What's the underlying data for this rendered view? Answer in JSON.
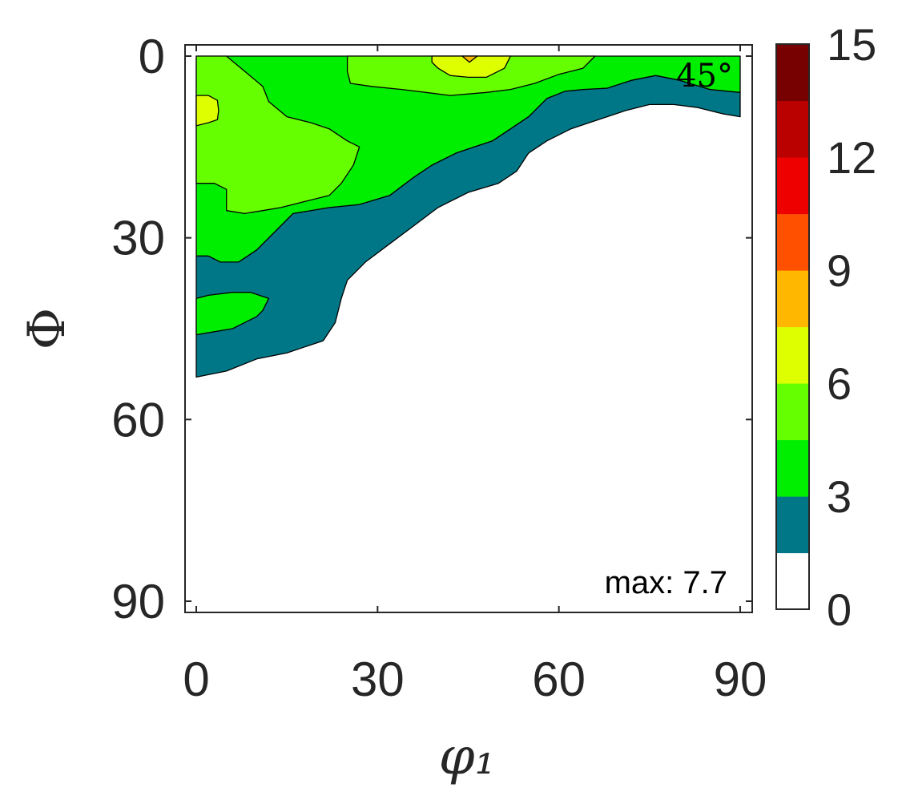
{
  "chart_data": {
    "type": "contour",
    "xlabel": "φ₁",
    "ylabel": "Φ",
    "x_range": [
      0,
      90
    ],
    "y_range": [
      0,
      90
    ],
    "y_reversed": true,
    "x_ticks": [
      "0",
      "30",
      "60",
      "90"
    ],
    "y_ticks": [
      "0",
      "30",
      "60",
      "90"
    ],
    "annotations": {
      "angle": "45°",
      "max": "max: 7.7"
    },
    "max_value": 7.7,
    "levels": [
      0,
      1.5,
      3,
      4.5,
      6,
      7.5,
      9,
      10.5,
      12,
      13.5,
      15
    ],
    "colorbar": {
      "ticks": [
        "0",
        "3",
        "6",
        "9",
        "12",
        "15"
      ],
      "colors": [
        "#ffffff",
        "#007787",
        "#00ee00",
        "#66ff00",
        "#ddff00",
        "#ffb700",
        "#ff5000",
        "#ee0000",
        "#bb0000",
        "#770000"
      ]
    },
    "regions": [
      {
        "level": "1.5-3",
        "color": "#007787",
        "polygon": [
          [
            0,
            53
          ],
          [
            5,
            52
          ],
          [
            10,
            50
          ],
          [
            15,
            49
          ],
          [
            21,
            47
          ],
          [
            23,
            44
          ],
          [
            24,
            40
          ],
          [
            25,
            37
          ],
          [
            28,
            34
          ],
          [
            32,
            31
          ],
          [
            36,
            28
          ],
          [
            40,
            25
          ],
          [
            45,
            22.5
          ],
          [
            50,
            21
          ],
          [
            53,
            19
          ],
          [
            55,
            16
          ],
          [
            58,
            14
          ],
          [
            62,
            12
          ],
          [
            65,
            11
          ],
          [
            68,
            10
          ],
          [
            71,
            9
          ],
          [
            75,
            8
          ],
          [
            79,
            8
          ],
          [
            83,
            8.5
          ],
          [
            87,
            9.5
          ],
          [
            90,
            10
          ],
          [
            90,
            6
          ],
          [
            85,
            5.5
          ],
          [
            80,
            4
          ],
          [
            76,
            3.2
          ],
          [
            72,
            4
          ],
          [
            68,
            5.3
          ],
          [
            64,
            5.5
          ],
          [
            61,
            5.8
          ],
          [
            58,
            7
          ],
          [
            55,
            10
          ],
          [
            52,
            12
          ],
          [
            49,
            14
          ],
          [
            46,
            15
          ],
          [
            43,
            16
          ],
          [
            39,
            18
          ],
          [
            36,
            20
          ],
          [
            32,
            23
          ],
          [
            27,
            24.5
          ],
          [
            22,
            25
          ],
          [
            16,
            26
          ],
          [
            13,
            29
          ],
          [
            10,
            32
          ],
          [
            7,
            34
          ],
          [
            4,
            34
          ],
          [
            2,
            33
          ],
          [
            0,
            33
          ]
        ]
      },
      {
        "level": "3-4.5 (low island)",
        "color": "#00ee00",
        "polygon": [
          [
            0,
            40
          ],
          [
            2,
            39.5
          ],
          [
            6,
            39
          ],
          [
            9,
            39
          ],
          [
            12,
            40
          ],
          [
            11,
            42
          ],
          [
            10,
            43
          ],
          [
            8,
            44
          ],
          [
            6,
            45
          ],
          [
            3,
            45.5
          ],
          [
            0,
            46
          ]
        ]
      },
      {
        "level": "3-4.5",
        "color": "#00ee00",
        "polygon": [
          [
            0,
            0
          ],
          [
            90,
            0
          ],
          [
            90,
            6
          ],
          [
            85,
            5.5
          ],
          [
            80,
            4
          ],
          [
            76,
            3.2
          ],
          [
            72,
            4
          ],
          [
            68,
            5.3
          ],
          [
            64,
            5.5
          ],
          [
            61,
            5.8
          ],
          [
            58,
            7
          ],
          [
            55,
            10
          ],
          [
            52,
            12
          ],
          [
            49,
            14
          ],
          [
            46,
            15
          ],
          [
            43,
            16
          ],
          [
            39,
            18
          ],
          [
            36,
            20
          ],
          [
            32,
            23
          ],
          [
            27,
            24.5
          ],
          [
            22,
            25
          ],
          [
            16,
            26
          ],
          [
            13,
            29
          ],
          [
            10,
            32
          ],
          [
            7,
            34
          ],
          [
            4,
            34
          ],
          [
            2,
            33
          ],
          [
            0,
            33
          ]
        ]
      },
      {
        "level": "4.5-6",
        "color": "#66ff00",
        "polygon": [
          [
            0,
            0
          ],
          [
            5,
            0
          ],
          [
            8,
            2.5
          ],
          [
            11,
            5
          ],
          [
            12,
            7.5
          ],
          [
            15,
            10
          ],
          [
            19,
            11
          ],
          [
            22,
            12
          ],
          [
            25,
            14
          ],
          [
            27,
            15
          ],
          [
            26,
            18
          ],
          [
            24,
            21
          ],
          [
            22,
            23
          ],
          [
            18,
            24
          ],
          [
            14,
            25
          ],
          [
            11,
            25.5
          ],
          [
            8,
            26
          ],
          [
            5,
            25.5
          ],
          [
            5,
            22
          ],
          [
            3,
            21
          ],
          [
            0,
            21
          ]
        ]
      },
      {
        "level": "4.5-6 (top)",
        "color": "#66ff00",
        "polygon": [
          [
            25,
            0
          ],
          [
            66,
            0
          ],
          [
            64,
            2
          ],
          [
            60,
            3
          ],
          [
            56,
            4.5
          ],
          [
            52,
            5.5
          ],
          [
            48,
            6
          ],
          [
            42,
            6.5
          ],
          [
            38,
            6
          ],
          [
            34,
            5.5
          ],
          [
            29,
            5
          ],
          [
            25.5,
            4.5
          ],
          [
            25,
            2.5
          ]
        ]
      },
      {
        "level": "6-7.5 (left)",
        "color": "#ddff00",
        "polygon": [
          [
            0,
            6.5
          ],
          [
            2,
            6.5
          ],
          [
            3.5,
            7.3
          ],
          [
            3.7,
            9
          ],
          [
            3.5,
            10.5
          ],
          [
            2,
            11
          ],
          [
            0,
            11.5
          ]
        ]
      },
      {
        "level": "6-7.5 (top)",
        "color": "#ddff00",
        "polygon": [
          [
            39,
            0
          ],
          [
            52,
            0
          ],
          [
            51,
            2
          ],
          [
            48,
            3.5
          ],
          [
            45,
            3.5
          ],
          [
            42,
            3.2
          ],
          [
            40,
            2
          ],
          [
            39,
            1
          ]
        ]
      },
      {
        "level": "7.5-9 (peak)",
        "color": "#ffb700",
        "polygon": [
          [
            44,
            0
          ],
          [
            46.5,
            0
          ],
          [
            45.2,
            1
          ]
        ]
      }
    ]
  }
}
